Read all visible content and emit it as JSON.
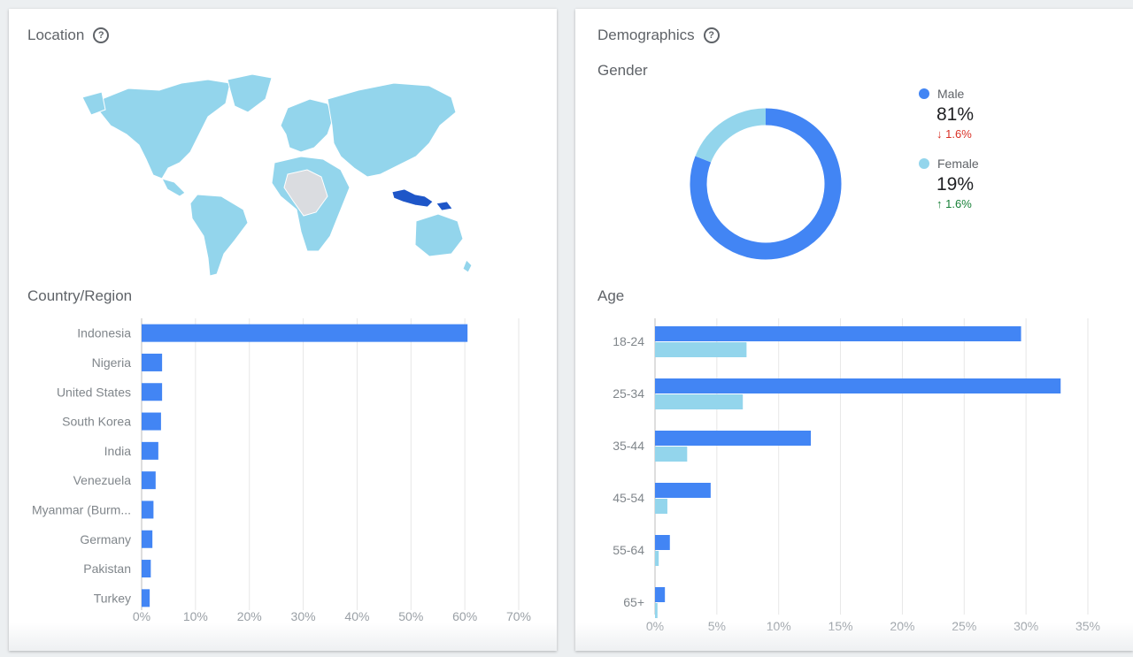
{
  "location": {
    "title": "Location",
    "help_icon": "help-circle-icon",
    "country_title": "Country/Region"
  },
  "demographics": {
    "title": "Demographics",
    "help_icon": "help-circle-icon",
    "gender_title": "Gender",
    "age_title": "Age",
    "gender": [
      {
        "label": "Male",
        "value": "81%",
        "change": "1.6%",
        "direction": "down",
        "change_color": "#d93025",
        "color": "#4285f4"
      },
      {
        "label": "Female",
        "value": "19%",
        "change": "1.6%",
        "direction": "up",
        "change_color": "#188038",
        "color": "#93d5ec"
      }
    ]
  },
  "chart_data": [
    {
      "type": "bar",
      "orientation": "horizontal",
      "title": "Country/Region",
      "categories": [
        "Indonesia",
        "Nigeria",
        "United States",
        "South Korea",
        "India",
        "Venezuela",
        "Myanmar (Burm...",
        "Germany",
        "Pakistan",
        "Turkey"
      ],
      "values": [
        60.5,
        3.8,
        3.8,
        3.6,
        3.1,
        2.6,
        2.2,
        2.0,
        1.7,
        1.5
      ],
      "xlim": [
        0,
        70
      ],
      "xticks": [
        "0%",
        "10%",
        "20%",
        "30%",
        "40%",
        "50%",
        "60%",
        "70%"
      ],
      "grid": true,
      "color": "#4285f4"
    },
    {
      "type": "pie",
      "title": "Gender",
      "categories": [
        "Male",
        "Female"
      ],
      "values": [
        81,
        19
      ],
      "colors": [
        "#4285f4",
        "#93d5ec"
      ]
    },
    {
      "type": "bar",
      "orientation": "horizontal",
      "title": "Age",
      "categories": [
        "18-24",
        "25-34",
        "35-44",
        "45-54",
        "55-64",
        "65+"
      ],
      "series": [
        {
          "values": [
            29.6,
            32.8,
            12.6,
            4.5,
            1.2,
            0.8
          ],
          "color": "#4285f4"
        },
        {
          "values": [
            7.4,
            7.1,
            2.6,
            1.0,
            0.3,
            0.2
          ],
          "color": "#93d5ec"
        }
      ],
      "xlim": [
        0,
        35
      ],
      "xticks": [
        "0%",
        "5%",
        "10%",
        "15%",
        "20%",
        "25%",
        "30%",
        "35%"
      ],
      "grid": true
    }
  ]
}
